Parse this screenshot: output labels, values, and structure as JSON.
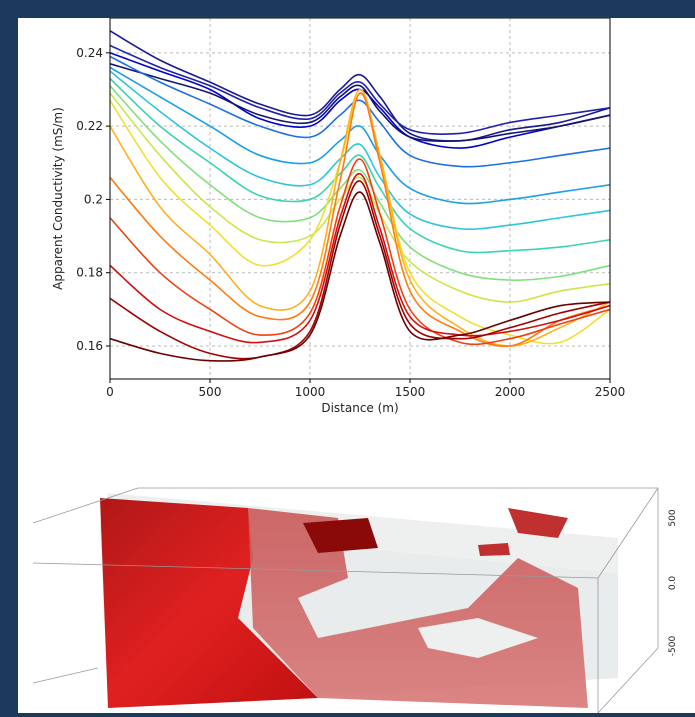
{
  "chart_data": {
    "type": "line",
    "x_label": "Distance (m)",
    "y_label": "Apparent Conductivity (mS/m)",
    "x": [
      0,
      250,
      500,
      750,
      1000,
      1150,
      1250,
      1350,
      1500,
      1750,
      2000,
      2250,
      2500
    ],
    "series": [
      {
        "color": "#1a1a8c",
        "values": [
          0.246,
          0.238,
          0.232,
          0.226,
          0.223,
          0.23,
          0.234,
          0.228,
          0.218,
          0.216,
          0.219,
          0.221,
          0.225
        ]
      },
      {
        "color": "#2020b0",
        "values": [
          0.242,
          0.236,
          0.231,
          0.225,
          0.222,
          0.229,
          0.232,
          0.226,
          0.219,
          0.218,
          0.221,
          0.223,
          0.225
        ]
      },
      {
        "color": "#0000cd",
        "values": [
          0.24,
          0.235,
          0.23,
          0.222,
          0.22,
          0.227,
          0.23,
          0.225,
          0.217,
          0.214,
          0.217,
          0.22,
          0.223
        ]
      },
      {
        "color": "#14146e",
        "values": [
          0.237,
          0.233,
          0.229,
          0.223,
          0.221,
          0.228,
          0.231,
          0.224,
          0.217,
          0.216,
          0.218,
          0.22,
          0.223
        ]
      },
      {
        "color": "#1e6fe0",
        "values": [
          0.239,
          0.232,
          0.226,
          0.22,
          0.217,
          0.223,
          0.227,
          0.221,
          0.212,
          0.209,
          0.21,
          0.212,
          0.214
        ]
      },
      {
        "color": "#1aa0e6",
        "values": [
          0.236,
          0.228,
          0.22,
          0.212,
          0.21,
          0.216,
          0.22,
          0.212,
          0.203,
          0.199,
          0.2,
          0.202,
          0.204
        ]
      },
      {
        "color": "#2ec4d9",
        "values": [
          0.235,
          0.224,
          0.214,
          0.206,
          0.204,
          0.211,
          0.215,
          0.206,
          0.196,
          0.192,
          0.193,
          0.195,
          0.197
        ]
      },
      {
        "color": "#39d4b0",
        "values": [
          0.233,
          0.22,
          0.21,
          0.201,
          0.2,
          0.207,
          0.212,
          0.203,
          0.192,
          0.186,
          0.186,
          0.187,
          0.189
        ]
      },
      {
        "color": "#7fe07a",
        "values": [
          0.231,
          0.216,
          0.204,
          0.195,
          0.195,
          0.203,
          0.208,
          0.199,
          0.187,
          0.18,
          0.178,
          0.179,
          0.182
        ]
      },
      {
        "color": "#c8e84a",
        "values": [
          0.229,
          0.212,
          0.198,
          0.189,
          0.19,
          0.2,
          0.206,
          0.196,
          0.183,
          0.175,
          0.172,
          0.175,
          0.177
        ]
      },
      {
        "color": "#f0e030",
        "values": [
          0.227,
          0.206,
          0.193,
          0.182,
          0.189,
          0.21,
          0.229,
          0.212,
          0.18,
          0.168,
          0.163,
          0.161,
          0.17
        ]
      },
      {
        "color": "#ffb020",
        "values": [
          0.22,
          0.198,
          0.185,
          0.171,
          0.175,
          0.21,
          0.23,
          0.212,
          0.178,
          0.165,
          0.16,
          0.165,
          0.172
        ]
      },
      {
        "color": "#ff7a10",
        "values": [
          0.206,
          0.19,
          0.178,
          0.168,
          0.172,
          0.205,
          0.229,
          0.21,
          0.175,
          0.164,
          0.16,
          0.167,
          0.171
        ]
      },
      {
        "color": "#f04010",
        "values": [
          0.195,
          0.18,
          0.17,
          0.163,
          0.169,
          0.198,
          0.211,
          0.196,
          0.17,
          0.161,
          0.162,
          0.166,
          0.17
        ]
      },
      {
        "color": "#d01010",
        "values": [
          0.182,
          0.17,
          0.164,
          0.161,
          0.167,
          0.195,
          0.207,
          0.192,
          0.168,
          0.163,
          0.164,
          0.167,
          0.171
        ]
      },
      {
        "color": "#a00000",
        "values": [
          0.173,
          0.164,
          0.158,
          0.157,
          0.164,
          0.193,
          0.205,
          0.19,
          0.166,
          0.162,
          0.165,
          0.169,
          0.172
        ]
      },
      {
        "color": "#6a0000",
        "values": [
          0.162,
          0.158,
          0.156,
          0.157,
          0.163,
          0.19,
          0.202,
          0.188,
          0.164,
          0.163,
          0.167,
          0.171,
          0.172
        ]
      }
    ],
    "xlim": [
      0,
      2500
    ],
    "xticks": [
      0,
      500,
      1000,
      1500,
      2000,
      2500
    ],
    "ylim": [
      0.151,
      0.2495
    ],
    "yticks": [
      0.16,
      0.18,
      0.2,
      0.22,
      0.24
    ],
    "grid": true
  },
  "model_3d": {
    "z_tick_labels": [
      "500",
      "0.0",
      "-500"
    ]
  }
}
